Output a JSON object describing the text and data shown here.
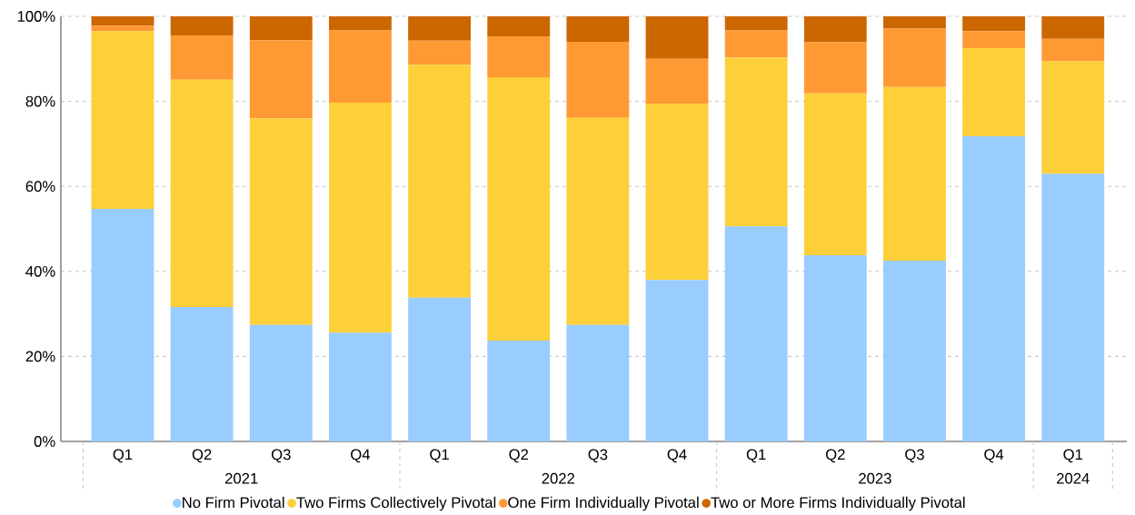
{
  "chart_data": {
    "type": "bar",
    "stacked": true,
    "categories": [
      "Q1",
      "Q2",
      "Q3",
      "Q4",
      "Q1",
      "Q2",
      "Q3",
      "Q4",
      "Q1",
      "Q2",
      "Q3",
      "Q4",
      "Q1"
    ],
    "series": [
      {
        "name": "No Firm Pivotal",
        "color": "#99ccff",
        "values": [
          54.7,
          31.6,
          27.4,
          25.6,
          33.8,
          23.7,
          27.4,
          38.0,
          50.6,
          43.8,
          42.5,
          71.8,
          63.0
        ]
      },
      {
        "name": "Two Firms Collectively Pivotal",
        "color": "#fdcf39",
        "values": [
          41.8,
          53.5,
          48.6,
          54.1,
          54.8,
          62.0,
          48.7,
          41.5,
          39.7,
          38.1,
          40.9,
          20.7,
          26.5
        ]
      },
      {
        "name": "One Firm Individually Pivotal",
        "color": "#ff9933",
        "values": [
          1.3,
          10.4,
          18.4,
          17.0,
          5.7,
          9.6,
          17.9,
          10.5,
          6.4,
          12.0,
          13.7,
          4.0,
          5.2
        ]
      },
      {
        "name": "Two or More Firms Individually Pivotal",
        "color": "#cc6600",
        "values": [
          2.2,
          4.5,
          5.6,
          3.3,
          5.7,
          4.7,
          6.0,
          10.0,
          3.3,
          6.1,
          2.9,
          3.5,
          5.3
        ]
      }
    ],
    "ylim": [
      0,
      100
    ],
    "yticks": [
      {
        "value": 0,
        "label": "0%"
      },
      {
        "value": 20,
        "label": "20%"
      },
      {
        "value": 40,
        "label": "40%"
      },
      {
        "value": 60,
        "label": "60%"
      },
      {
        "value": 80,
        "label": "80%"
      },
      {
        "value": 100,
        "label": "100%"
      }
    ],
    "annotations": [
      "2021",
      "2022",
      "2023",
      "2024"
    ],
    "grid": "y",
    "legend": "bottom"
  }
}
